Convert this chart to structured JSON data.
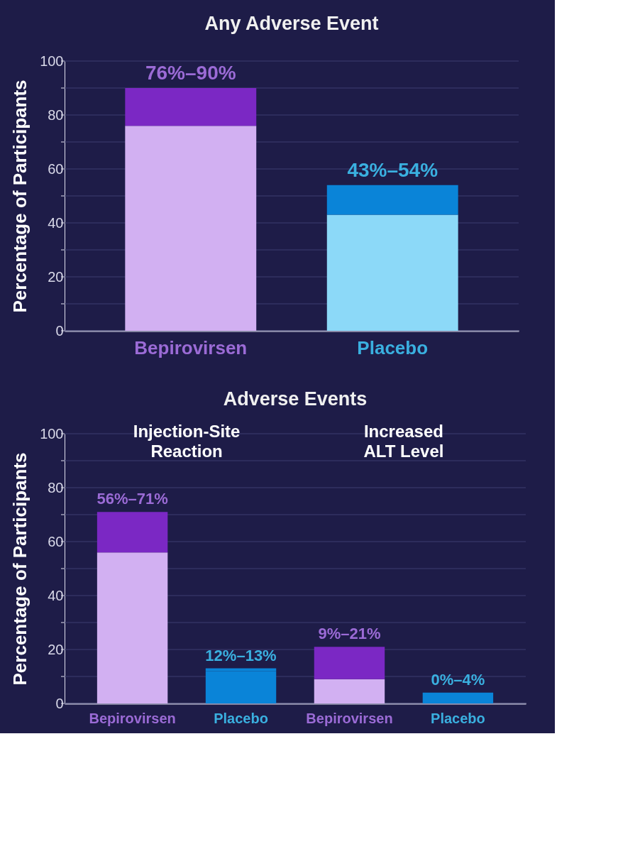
{
  "chart_data": [
    {
      "type": "bar",
      "title": "Any Adverse Event",
      "ylabel": "Percentage of Participants",
      "categories": [
        "Bepirovirsen",
        "Placebo"
      ],
      "stacked": true,
      "annotations": [
        {
          "text": "76%–90%",
          "x": "Bepirovirsen",
          "y": 90
        },
        {
          "text": "43%–54%",
          "x": "Placebo",
          "y": 54
        }
      ],
      "series": [
        {
          "colors": [
            "#d2b0f2",
            "#8cd9f8"
          ],
          "values": [
            76,
            43
          ]
        },
        {
          "colors": [
            "#7b28c4",
            "#0a84d8"
          ],
          "values": [
            14,
            11
          ]
        }
      ],
      "ylim": [
        0,
        100
      ],
      "yticks": [
        0,
        {
          "value": 10,
          "label": null
        },
        20,
        {
          "value": 30,
          "label": null
        },
        40,
        {
          "value": 50,
          "label": null
        },
        60,
        {
          "value": 70,
          "label": null
        },
        80,
        {
          "value": 90,
          "label": null
        },
        100
      ],
      "grid": "y"
    },
    {
      "type": "bar",
      "title": "Adverse Events",
      "ylabel": "Percentage of Participants",
      "categories": [
        "Bepirovirsen",
        "Placebo",
        "Bepirovirsen",
        "Placebo"
      ],
      "stacked": true,
      "annotations": [
        "Injection-Site Reaction",
        "Increased ALT Level",
        {
          "text": "56%–71%",
          "x": "Bepirovirsen",
          "y": 71
        },
        {
          "text": "12%–13%",
          "x": "Placebo",
          "y": 13
        },
        "9%–21%",
        "0%–4%"
      ],
      "series": [
        {
          "colors": [
            "#d2b0f2",
            "#0a84d8",
            "#d2b0f2",
            "#0a84d8"
          ],
          "values": [
            56,
            12,
            9,
            0
          ]
        },
        {
          "colors": [
            "#7b28c4",
            "#0a84d8",
            "#7b28c4",
            "#0a84d8"
          ],
          "values": [
            15,
            1,
            12,
            4
          ]
        }
      ],
      "ylim": [
        0,
        100
      ],
      "yticks": [
        0,
        {
          "value": 10,
          "label": null
        },
        20,
        {
          "value": 30,
          "label": null
        },
        40,
        {
          "value": 50,
          "label": null
        },
        60,
        {
          "value": 70,
          "label": null
        },
        80,
        {
          "value": 90,
          "label": null
        },
        100
      ],
      "grid": "y"
    }
  ]
}
